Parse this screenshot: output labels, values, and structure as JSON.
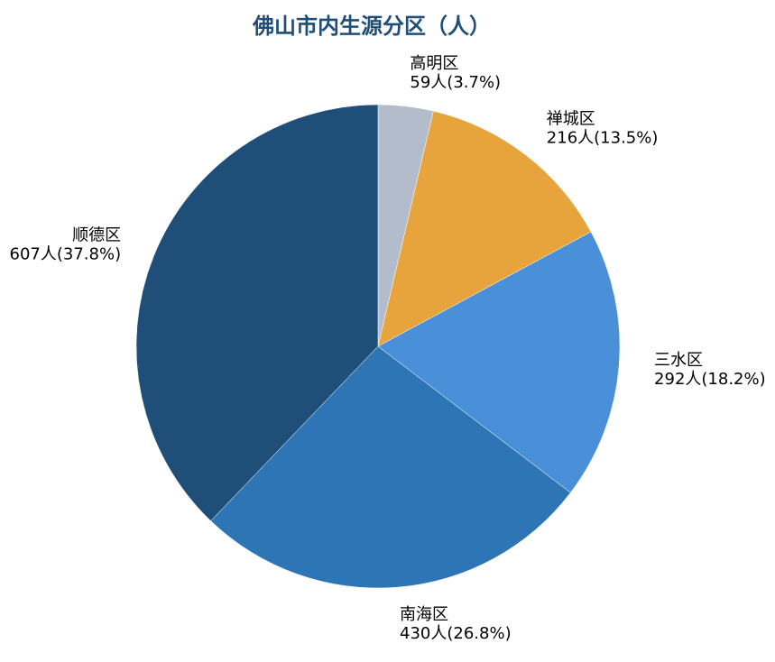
{
  "chart_data": {
    "type": "pie",
    "title": "佛山市内生源分区（人）",
    "unit": "人",
    "start_angle_deg": 90,
    "direction": "clockwise",
    "slices": [
      {
        "label": "高明区",
        "value": 59,
        "percent": 3.7,
        "color": "#b3bccb",
        "value_text": "59人(3.7%)"
      },
      {
        "label": "禅城区",
        "value": 216,
        "percent": 13.5,
        "color": "#e8a43c",
        "value_text": "216人(13.5%)"
      },
      {
        "label": "三水区",
        "value": 292,
        "percent": 18.2,
        "color": "#4a90d8",
        "value_text": "292人(18.2%)"
      },
      {
        "label": "南海区",
        "value": 430,
        "percent": 26.8,
        "color": "#2e75b6",
        "value_text": "430人(26.8%)"
      },
      {
        "label": "顺德区",
        "value": 607,
        "percent": 37.8,
        "color": "#1f4e79",
        "value_text": "607人(37.8%)"
      }
    ],
    "title_color": "#1f4e79"
  }
}
